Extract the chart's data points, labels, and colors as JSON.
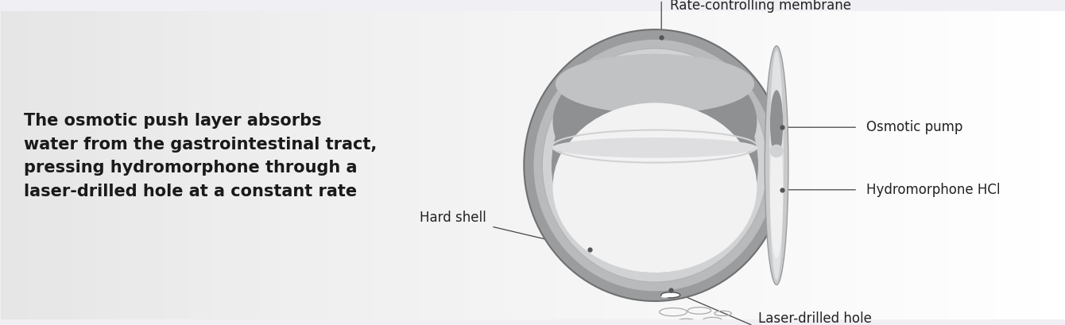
{
  "text_left_lines": [
    "The osmotic push layer absorbs",
    "water from the gastrointestinal tract,",
    "pressing hydromorphone through a",
    "laser-drilled hole at a constant rate"
  ],
  "labels": {
    "hard_shell": "Hard shell",
    "laser_hole": "Laser-drilled hole",
    "hydromorphone": "Hydromorphone HCl",
    "osmotic_pump": "Osmotic pump",
    "membrane": "Rate-controlling membrane"
  },
  "label_fontsize": 12,
  "text_fontsize": 15,
  "bg_color": "#f0f0f4",
  "text_color": "#1a1a1a",
  "label_color": "#222222",
  "line_color": "#444444",
  "dot_color": "#555555",
  "outer_shell_color": "#a8a8ab",
  "inner_shell_color": "#c0c2c4",
  "inner_rim_color": "#d4d6d8",
  "white_layer": "#f4f4f4",
  "gray_layer": "#8c8e90",
  "membrane_color": "#c8cacc",
  "bubble_color": "#c8c8c8"
}
